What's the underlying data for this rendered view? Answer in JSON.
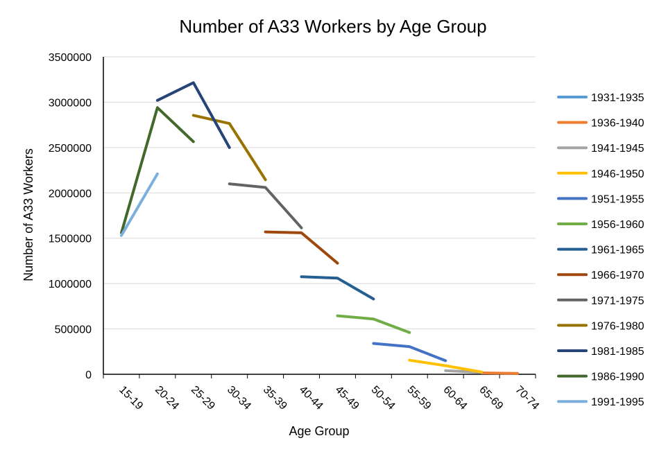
{
  "chart_data": {
    "type": "line",
    "title": "Number of A33 Workers by Age Group",
    "xlabel": "Age Group",
    "ylabel": "Number of A33 Workers",
    "categories": [
      "15-19",
      "20-24",
      "25-29",
      "30-34",
      "35-39",
      "40-44",
      "45-49",
      "50-54",
      "55-59",
      "60-64",
      "65-69",
      "70-74"
    ],
    "ylim": [
      0,
      3500000
    ],
    "yticks": [
      0,
      500000,
      1000000,
      1500000,
      2000000,
      2500000,
      3000000,
      3500000
    ],
    "grid": true,
    "legend_position": "right",
    "series": [
      {
        "name": "1931-1935",
        "color": "#5b9bd5",
        "values": [
          null,
          null,
          null,
          null,
          null,
          null,
          null,
          null,
          null,
          null,
          null,
          10000
        ]
      },
      {
        "name": "1936-1940",
        "color": "#ed7d31",
        "values": [
          null,
          null,
          null,
          null,
          null,
          null,
          null,
          null,
          null,
          null,
          15000,
          10000
        ]
      },
      {
        "name": "1941-1945",
        "color": "#a5a5a5",
        "values": [
          null,
          null,
          null,
          null,
          null,
          null,
          null,
          null,
          null,
          40000,
          20000,
          null
        ]
      },
      {
        "name": "1946-1950",
        "color": "#ffc000",
        "values": [
          null,
          null,
          null,
          null,
          null,
          null,
          null,
          null,
          155000,
          95000,
          25000,
          null
        ]
      },
      {
        "name": "1951-1955",
        "color": "#4472c4",
        "values": [
          null,
          null,
          null,
          null,
          null,
          null,
          null,
          340000,
          305000,
          150000,
          null,
          null
        ]
      },
      {
        "name": "1956-1960",
        "color": "#70ad47",
        "values": [
          null,
          null,
          null,
          null,
          null,
          null,
          645000,
          610000,
          460000,
          null,
          null,
          null
        ]
      },
      {
        "name": "1961-1965",
        "color": "#255e91",
        "values": [
          null,
          null,
          null,
          null,
          null,
          1075000,
          1060000,
          830000,
          null,
          null,
          null,
          null
        ]
      },
      {
        "name": "1966-1970",
        "color": "#9e480e",
        "values": [
          null,
          null,
          null,
          null,
          1570000,
          1560000,
          1225000,
          null,
          null,
          null,
          null,
          null
        ]
      },
      {
        "name": "1971-1975",
        "color": "#636363",
        "values": [
          null,
          null,
          null,
          2100000,
          2060000,
          1615000,
          null,
          null,
          null,
          null,
          null,
          null
        ]
      },
      {
        "name": "1976-1980",
        "color": "#997300",
        "values": [
          null,
          null,
          2855000,
          2765000,
          2145000,
          null,
          null,
          null,
          null,
          null,
          null,
          null
        ]
      },
      {
        "name": "1981-1985",
        "color": "#264478",
        "values": [
          null,
          3020000,
          3215000,
          2500000,
          null,
          null,
          null,
          null,
          null,
          null,
          null,
          null
        ]
      },
      {
        "name": "1986-1990",
        "color": "#43682b",
        "values": [
          1560000,
          2940000,
          2565000,
          null,
          null,
          null,
          null,
          null,
          null,
          null,
          null,
          null
        ]
      },
      {
        "name": "1991-1995",
        "color": "#7cafdd",
        "values": [
          1530000,
          2210000,
          null,
          null,
          null,
          null,
          null,
          null,
          null,
          null,
          null,
          null
        ]
      }
    ]
  }
}
